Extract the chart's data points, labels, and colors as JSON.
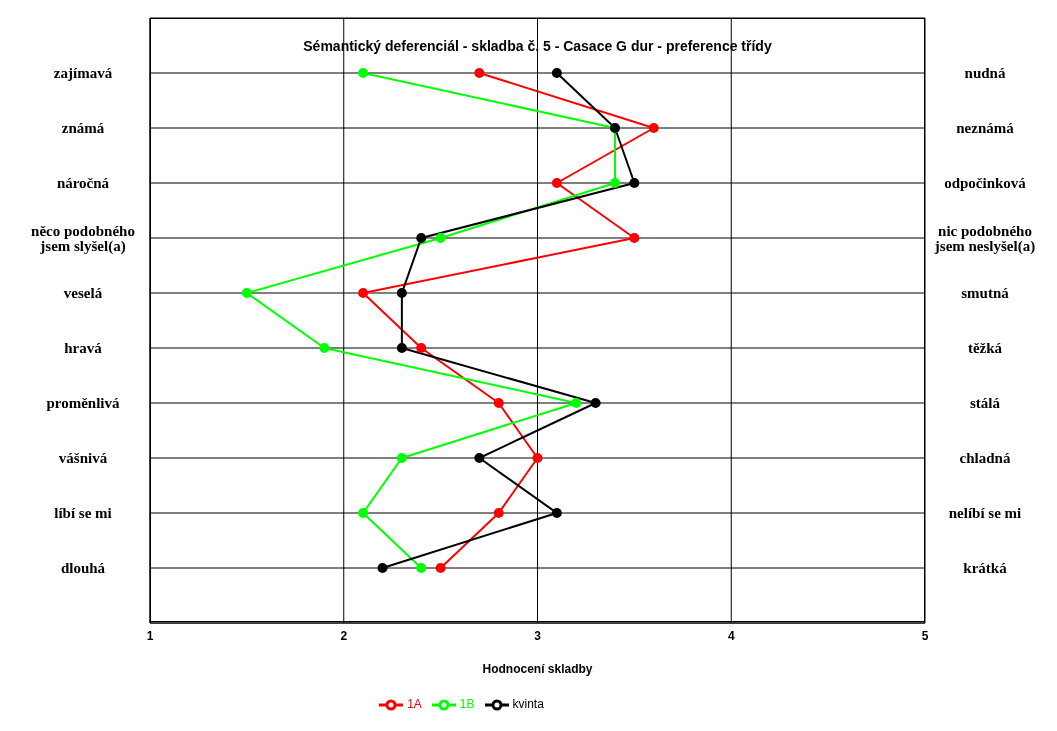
{
  "chart_data": {
    "type": "line",
    "orientation": "horizontal",
    "title": "Sémantický deferenciál - skladba č. 5 - Casace G dur - preference třídy",
    "xlabel": "Hodnocení skladby",
    "categories": [
      "zajímavá",
      "známá",
      "náročná",
      "něco podobného jsem slyšel(a)",
      "veselá",
      "hravá",
      "proměnlivá",
      "vášnivá",
      "líbí se mi",
      "dlouhá"
    ],
    "y2_categories": [
      "nudná",
      "neznámá",
      "odpočinková",
      "nic podobného jsem neslyšel(a)",
      "smutná",
      "těžká",
      "stálá",
      "chladná",
      "nelíbí se mi",
      "krátká"
    ],
    "series": [
      {
        "name": "1A",
        "color": "#ff0000",
        "values": [
          2.7,
          3.6,
          3.1,
          3.5,
          2.1,
          2.4,
          2.8,
          3.0,
          2.8,
          2.5
        ]
      },
      {
        "name": "1B",
        "color": "#00ff00",
        "values": [
          2.1,
          3.4,
          3.4,
          2.5,
          1.5,
          1.9,
          3.2,
          2.3,
          2.1,
          2.4
        ]
      },
      {
        "name": "kvinta",
        "color": "#000000",
        "values": [
          3.1,
          3.4,
          3.5,
          2.4,
          2.3,
          2.3,
          3.3,
          2.7,
          3.1,
          2.2
        ]
      }
    ],
    "xlim": [
      1,
      5
    ],
    "xticks": [
      1,
      2,
      3,
      4,
      5
    ],
    "grid": true,
    "legend": "bottom",
    "marker": "circle",
    "line_style": "solid"
  }
}
